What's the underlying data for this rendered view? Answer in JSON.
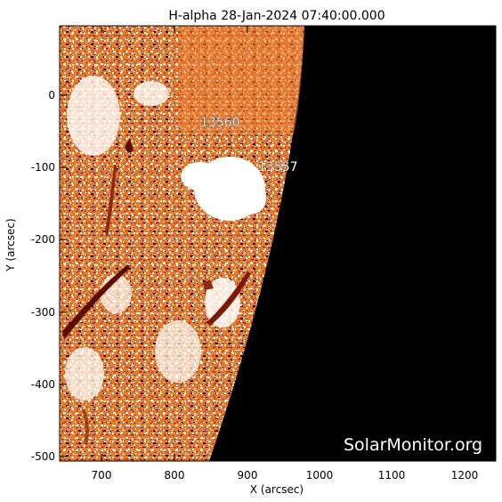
{
  "title": "H-alpha 28-Jan-2024 07:40:00.000",
  "x_axis_label": "X (arcsec)",
  "y_axis_label": "Y (arcsec)",
  "x_ticks": [
    "700",
    "800",
    "900",
    "1000",
    "1100",
    "1200"
  ],
  "y_ticks": [
    "0",
    "-100",
    "-200",
    "-300",
    "-400",
    "-500"
  ],
  "active_regions": [
    {
      "label": "13560"
    },
    {
      "label": "13557"
    }
  ],
  "watermark": "SolarMonitor.org",
  "colors": {
    "disk_orange": "#e07020",
    "disk_light": "#f0a060",
    "filament_dark": "#5a0c00",
    "space": "#000000",
    "plage_white": "#ffffff"
  }
}
